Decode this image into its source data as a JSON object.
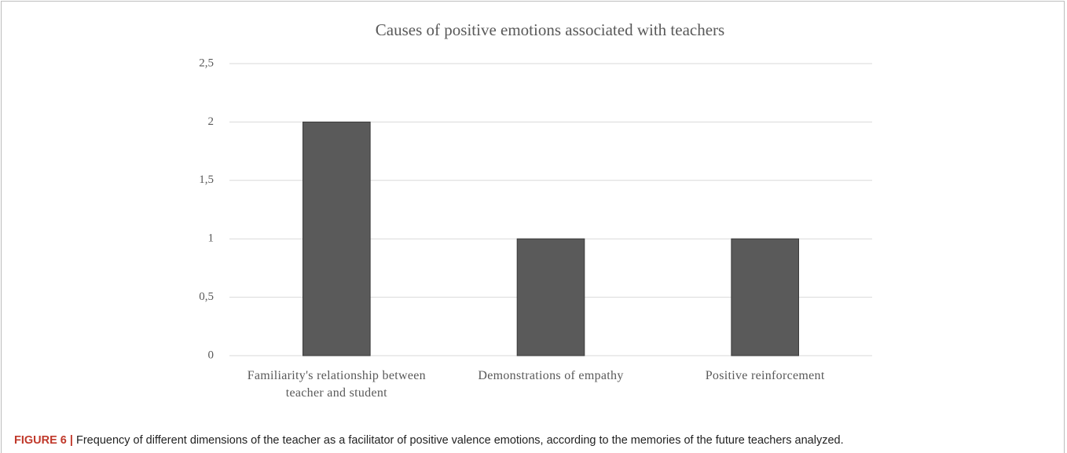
{
  "chart_data": {
    "type": "bar",
    "title": "Causes of positive emotions associated with teachers",
    "categories": [
      "Familiarity's relationship between teacher and student",
      "Demonstrations of empathy",
      "Positive reinforcement"
    ],
    "values": [
      2,
      1,
      1
    ],
    "color": "#5a5a5a",
    "ylim": [
      0,
      2.5
    ],
    "yticks": [
      0,
      {
        "value": 0.5,
        "label": "0,5"
      },
      1,
      {
        "value": 1.5,
        "label": "1,5"
      },
      2,
      {
        "value": 2.5,
        "label": "2,5"
      }
    ],
    "grid": true
  },
  "caption": {
    "label": "FIGURE 6 |",
    "text": "Frequency of different dimensions of the teacher as a facilitator of positive valence emotions, according to the memories of the future teachers analyzed."
  }
}
